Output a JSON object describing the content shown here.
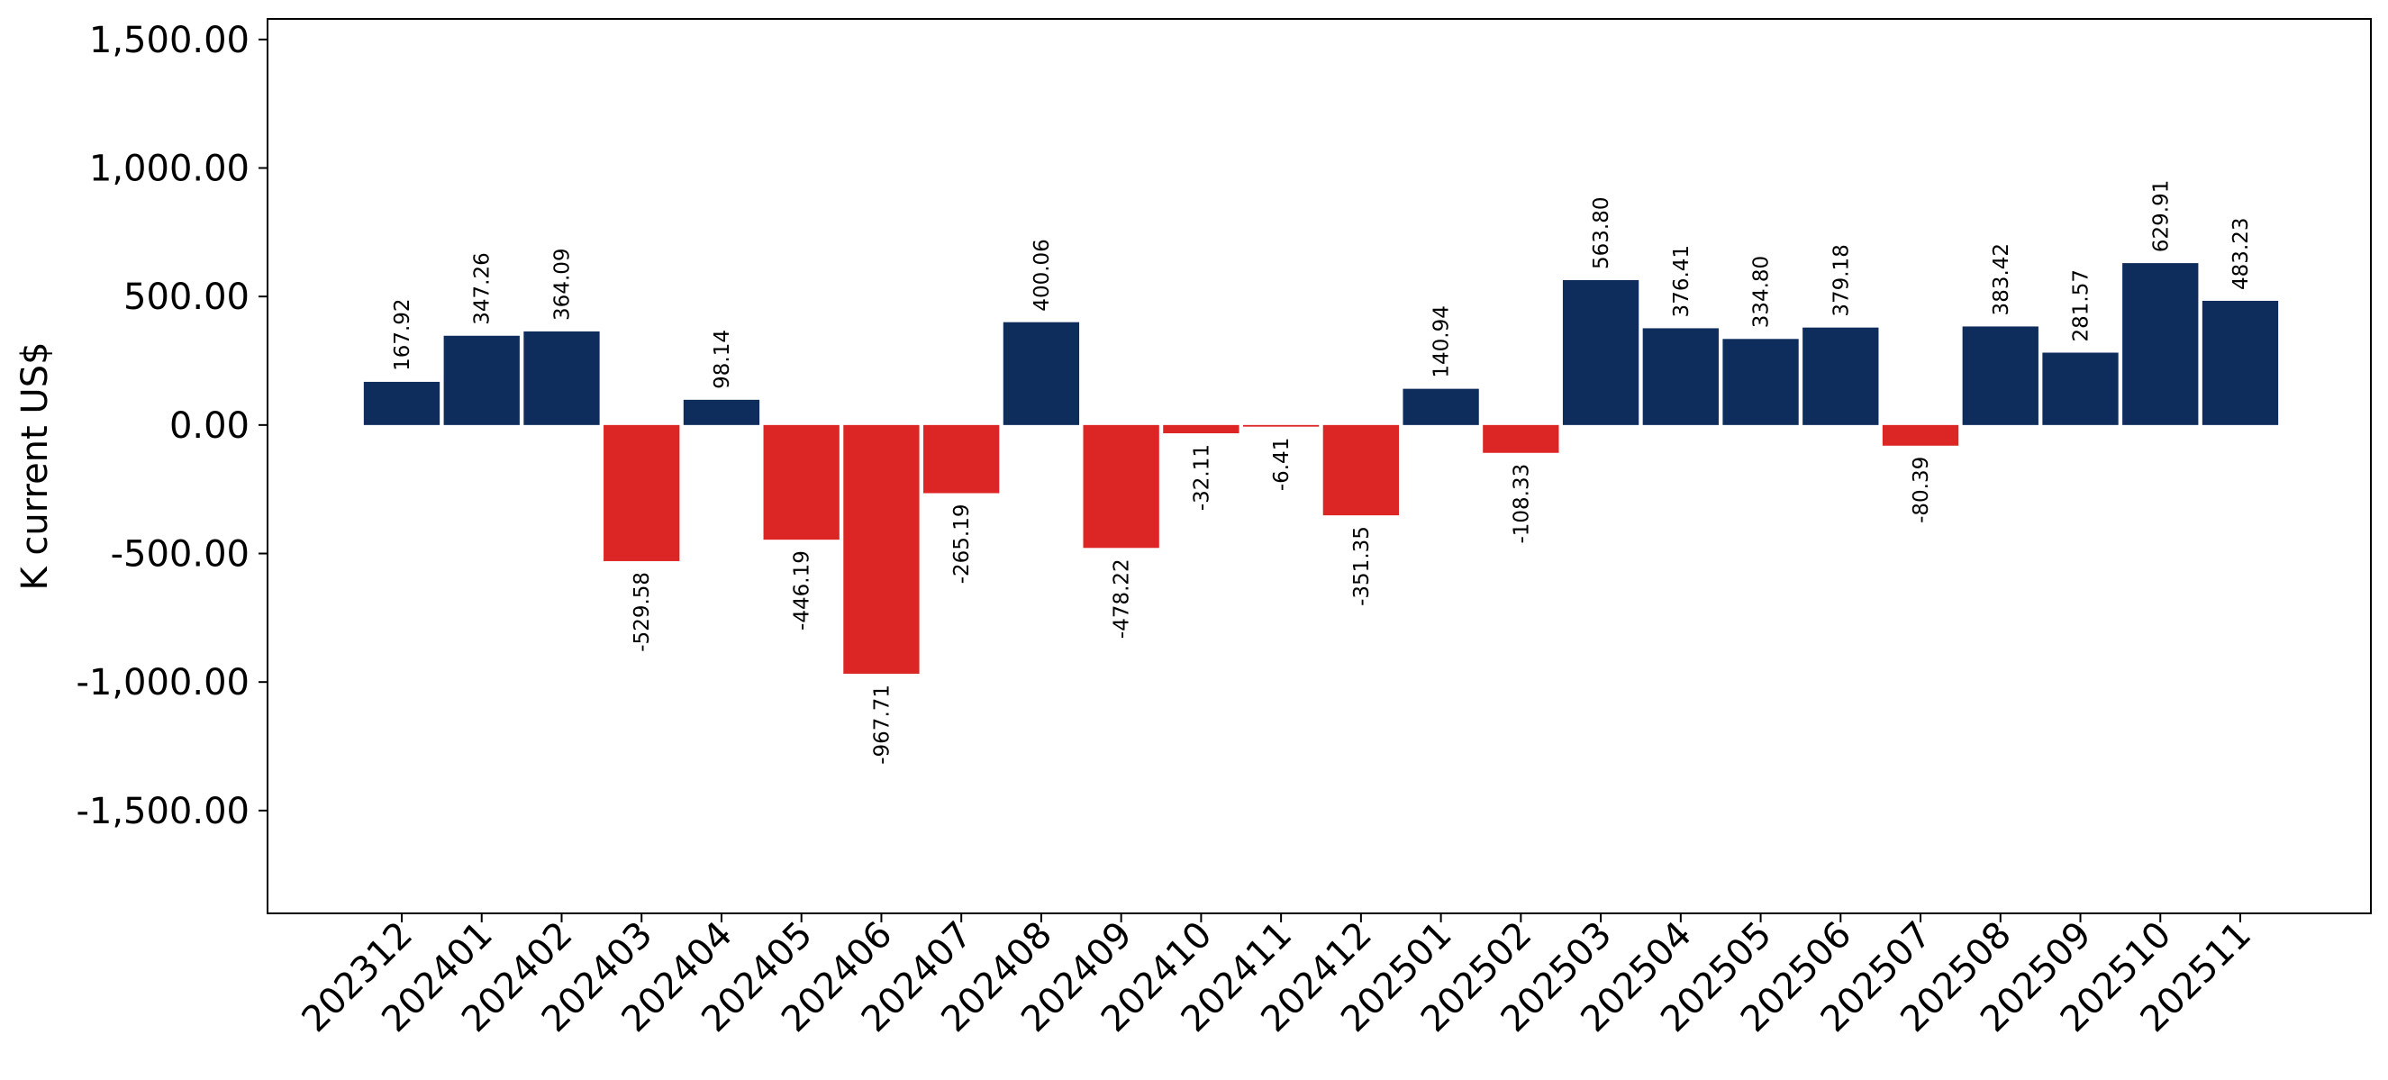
{
  "chart_data": {
    "type": "bar",
    "title": "",
    "xlabel": "",
    "ylabel": "K current US$",
    "ylim": [
      -1900,
      1580
    ],
    "yticks": [
      -1500,
      -1000,
      -500,
      0,
      500,
      1000,
      1500
    ],
    "ytick_labels": [
      "-1,500.00",
      "-1,000.00",
      "-500.00",
      "0.00",
      "500.00",
      "1,000.00",
      "1,500.00"
    ],
    "grid": false,
    "legend": "none",
    "colors": {
      "positive": "#0e2c5c",
      "negative": "#dc2626"
    },
    "categories": [
      "202312",
      "202401",
      "202402",
      "202403",
      "202404",
      "202405",
      "202406",
      "202407",
      "202408",
      "202409",
      "202410",
      "202411",
      "202412",
      "202501",
      "202502",
      "202503",
      "202504",
      "202505",
      "202506",
      "202507",
      "202508",
      "202509",
      "202510",
      "202511"
    ],
    "values": [
      167.92,
      347.26,
      364.09,
      -529.58,
      98.14,
      -446.19,
      -967.71,
      -265.19,
      400.06,
      -478.22,
      -32.11,
      -6.41,
      -351.35,
      140.94,
      -108.33,
      563.8,
      376.41,
      334.8,
      379.18,
      -80.39,
      383.42,
      281.57,
      629.91,
      483.23
    ],
    "value_labels": [
      "167.92",
      "347.26",
      "364.09",
      "-529.58",
      "98.14",
      "-446.19",
      "-967.71",
      "-265.19",
      "400.06",
      "-478.22",
      "-32.11",
      "-6.41",
      "-351.35",
      "140.94",
      "-108.33",
      "563.80",
      "376.41",
      "334.80",
      "379.18",
      "-80.39",
      "383.42",
      "281.57",
      "629.91",
      "483.23"
    ]
  }
}
